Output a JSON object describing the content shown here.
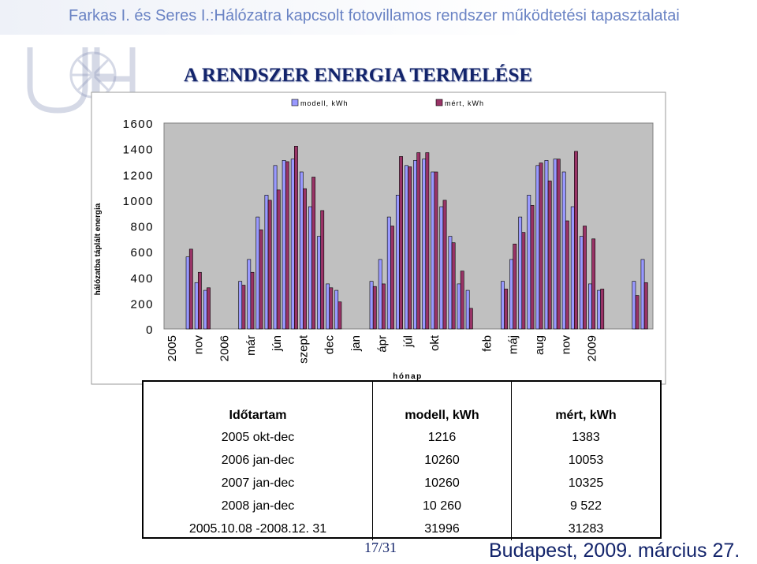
{
  "header": {
    "text": "Farkas I. és Seres I.:Hálózatra kapcsolt fotovillamos rendszer működtetési tapasztalatai"
  },
  "main_title": "A RENDSZER ENERGIA TERMELÉSE",
  "colors": {
    "modell": "#9999ff",
    "mert": "#993366",
    "plot_bg": "#c0c0c0",
    "title": "#13246b",
    "header": "#6a83c4"
  },
  "chart_data": {
    "type": "bar",
    "xlabel": "hónap",
    "ylabel": "hálózatba táplált energia",
    "ylim": [
      0,
      1600
    ],
    "yticks": [
      0,
      200,
      400,
      600,
      800,
      1000,
      1200,
      1400,
      1600
    ],
    "grid": false,
    "legend": "top",
    "series": [
      {
        "name": "modell, kWh",
        "values": [
          560,
          360,
          300,
          null,
          null,
          null,
          370,
          540,
          870,
          1040,
          1270,
          1310,
          1320,
          1220,
          950,
          720,
          350,
          300,
          null,
          null,
          null,
          370,
          540,
          870,
          1040,
          1270,
          1310,
          1320,
          1220,
          950,
          720,
          350,
          300,
          null,
          null,
          null,
          370,
          540,
          870,
          1040,
          1270,
          1310,
          1320,
          1220,
          950,
          720,
          350,
          300,
          null,
          null,
          null,
          370,
          540
        ]
      },
      {
        "name": "mért, kWh",
        "values": [
          620,
          440,
          320,
          null,
          null,
          null,
          340,
          440,
          770,
          1000,
          1080,
          1300,
          1420,
          1090,
          1180,
          920,
          320,
          210,
          null,
          null,
          null,
          330,
          350,
          800,
          1340,
          1260,
          1370,
          1370,
          1220,
          1000,
          670,
          450,
          160,
          null,
          null,
          null,
          310,
          660,
          750,
          960,
          1290,
          1150,
          1320,
          840,
          1380,
          800,
          700,
          310,
          null,
          null,
          null,
          260,
          360
        ]
      }
    ],
    "x_tick_labels": [
      {
        "i": -2,
        "text": "2005"
      },
      {
        "i": 1,
        "text": "nov"
      },
      {
        "i": 4,
        "text": "2006"
      },
      {
        "i": 7,
        "text": "már"
      },
      {
        "i": 10,
        "text": "jún"
      },
      {
        "i": 13,
        "text": "szept"
      },
      {
        "i": 16,
        "text": "dec"
      },
      {
        "i": 19,
        "text": "jan"
      },
      {
        "i": 22,
        "text": "ápr"
      },
      {
        "i": 25,
        "text": "júl"
      },
      {
        "i": 28,
        "text": "okt"
      },
      {
        "i": 34,
        "text": "feb"
      },
      {
        "i": 37,
        "text": "máj"
      },
      {
        "i": 40,
        "text": "aug"
      },
      {
        "i": 43,
        "text": "nov"
      },
      {
        "i": 46,
        "text": "2009"
      }
    ]
  },
  "table": {
    "headers": [
      "Időtartam",
      "modell, kWh",
      "mért, kWh"
    ],
    "rows": [
      [
        "2005 okt-dec",
        "1216",
        "1383"
      ],
      [
        "2006 jan-dec",
        "10260",
        "10053"
      ],
      [
        "2007 jan-dec",
        "10260",
        "10325"
      ],
      [
        "2008 jan-dec",
        "10 260",
        "9 522"
      ],
      [
        "2005.10.08 -2008.12. 31",
        "31996",
        "31283"
      ]
    ]
  },
  "footer": {
    "page": "17/31",
    "location": "Budapest, 2009. március 27."
  }
}
